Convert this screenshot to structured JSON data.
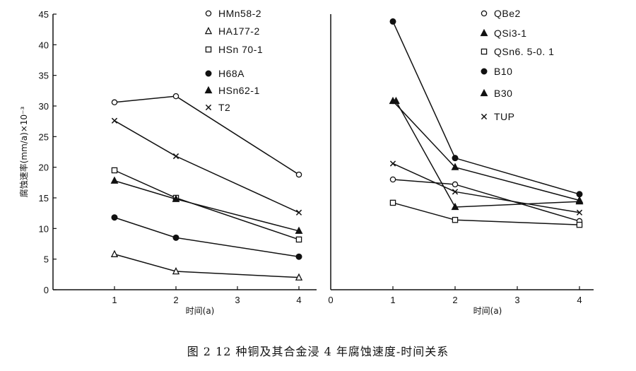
{
  "caption": "图 2   12 种铜及其合金浸 4 年腐蚀速度-时间关系",
  "chart_data": [
    {
      "type": "line",
      "ylabel": "腐蚀速率(mm/a)×10⁻³",
      "xlabel": "时间(a)",
      "xticks": [
        1,
        2,
        3,
        4
      ],
      "xlim": [
        0,
        4.3
      ],
      "yticks": [
        0,
        5,
        10,
        15,
        20,
        25,
        30,
        35,
        40,
        45
      ],
      "ylim": [
        0,
        45
      ],
      "series": [
        {
          "name": "HMn58-2",
          "marker": "circle-open",
          "x": [
            1,
            2,
            4
          ],
          "y": [
            30.6,
            31.6,
            18.8
          ]
        },
        {
          "name": "HA177-2",
          "marker": "triangle-open",
          "x": [
            1,
            2,
            4
          ],
          "y": [
            5.8,
            3.0,
            2.0
          ]
        },
        {
          "name": "HSn 70-1",
          "marker": "square-open",
          "x": [
            1,
            2,
            4
          ],
          "y": [
            19.5,
            15.0,
            8.2
          ]
        },
        {
          "name": "H68A",
          "marker": "circle-filled",
          "x": [
            1,
            2,
            4
          ],
          "y": [
            11.8,
            8.5,
            5.4
          ]
        },
        {
          "name": "HSn62-1",
          "marker": "triangle-filled",
          "x": [
            1,
            2,
            4
          ],
          "y": [
            17.8,
            14.8,
            9.6
          ]
        },
        {
          "name": "T2",
          "marker": "x",
          "x": [
            1,
            2,
            4
          ],
          "y": [
            27.6,
            21.8,
            12.6
          ]
        }
      ]
    },
    {
      "type": "line",
      "ylabel": "",
      "xlabel": "时间(a)",
      "xticks": [
        0,
        1,
        2,
        3,
        4
      ],
      "xlim": [
        0,
        4.3
      ],
      "ylim": [
        0,
        45
      ],
      "series": [
        {
          "name": "QBe2",
          "marker": "circle-open",
          "x": [
            1,
            2,
            4
          ],
          "y": [
            18.0,
            17.2,
            11.2
          ]
        },
        {
          "name": "QSi3-1",
          "marker": "triangle-filled",
          "x": [
            1.05,
            2,
            4
          ],
          "y": [
            30.8,
            13.5,
            14.4
          ]
        },
        {
          "name": "QSn6. 5-0. 1",
          "marker": "square-open",
          "x": [
            1,
            2,
            4
          ],
          "y": [
            14.2,
            11.4,
            10.6
          ]
        },
        {
          "name": "B10",
          "marker": "circle-filled",
          "x": [
            1,
            2,
            4
          ],
          "y": [
            43.8,
            21.5,
            15.6
          ]
        },
        {
          "name": "B30",
          "marker": "triangle-filled",
          "x": [
            1,
            2,
            4
          ],
          "y": [
            30.8,
            20.0,
            14.6
          ]
        },
        {
          "name": "TUP",
          "marker": "x",
          "x": [
            1,
            2,
            4
          ],
          "y": [
            20.6,
            16.0,
            12.6
          ]
        }
      ]
    }
  ]
}
